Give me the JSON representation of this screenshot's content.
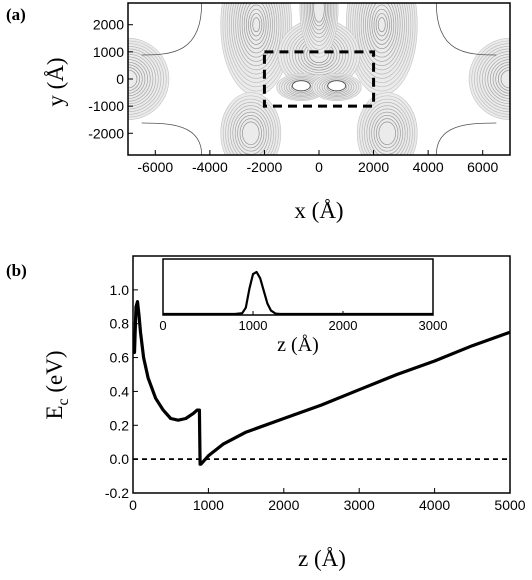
{
  "chart_data": [
    {
      "panel": "(a)",
      "type": "contour",
      "xlabel": "x (Å)",
      "ylabel": "y (Å)",
      "xlim": [
        -7000,
        7000
      ],
      "ylim": [
        -2800,
        2800
      ],
      "xticks": [
        -6000,
        -4000,
        -2000,
        0,
        2000,
        4000,
        6000
      ],
      "yticks": [
        2000,
        1000,
        0,
        -1000,
        -2000
      ],
      "highlight_box": {
        "x": [
          -2000,
          2000
        ],
        "y": [
          -1000,
          1000
        ],
        "style": "dashed"
      }
    },
    {
      "panel": "(b)",
      "type": "line",
      "xlabel": "z (Å)",
      "ylabel": "E",
      "ylabel_sub": "c",
      "ylabel_unit": " (eV)",
      "xlim": [
        0,
        5000
      ],
      "ylim": [
        -0.2,
        1.2
      ],
      "xticks": [
        0,
        1000,
        2000,
        3000,
        4000,
        5000
      ],
      "yticks": [
        1.0,
        0.8,
        0.6,
        0.4,
        0.2,
        0.0,
        -0.2
      ],
      "ytick_labels": [
        "1.0",
        "0.8",
        "0.6",
        "0.4",
        "0.2",
        "0.0",
        "-0.2"
      ],
      "reference_line": {
        "y": 0.0,
        "style": "dashed"
      },
      "series": [
        {
          "x": [
            0,
            20,
            40,
            60,
            80,
            100,
            140,
            200,
            300,
            400,
            500,
            600,
            700,
            800,
            850,
            880,
            890,
            900,
            1000,
            1200,
            1500,
            2000,
            2500,
            3000,
            3500,
            4000,
            4500,
            5000
          ],
          "values": [
            0.67,
            0.63,
            0.9,
            0.93,
            0.85,
            0.75,
            0.6,
            0.48,
            0.36,
            0.29,
            0.24,
            0.23,
            0.24,
            0.27,
            0.29,
            0.29,
            -0.03,
            -0.03,
            0.02,
            0.09,
            0.16,
            0.24,
            0.32,
            0.41,
            0.5,
            0.58,
            0.67,
            0.75
          ]
        }
      ],
      "inset": {
        "type": "line",
        "xlabel": "z (Å)",
        "xlim": [
          0,
          3000
        ],
        "xticks": [
          0,
          1000,
          2000,
          3000
        ],
        "series": [
          {
            "x": [
              0,
              800,
              880,
              920,
              960,
              1000,
              1040,
              1080,
              1120,
              1160,
              1200,
              1250,
              1300,
              3000
            ],
            "values": [
              0,
              0,
              0.02,
              0.15,
              0.6,
              0.95,
              1.0,
              0.85,
              0.55,
              0.25,
              0.08,
              0.01,
              0,
              0
            ]
          }
        ]
      }
    }
  ]
}
